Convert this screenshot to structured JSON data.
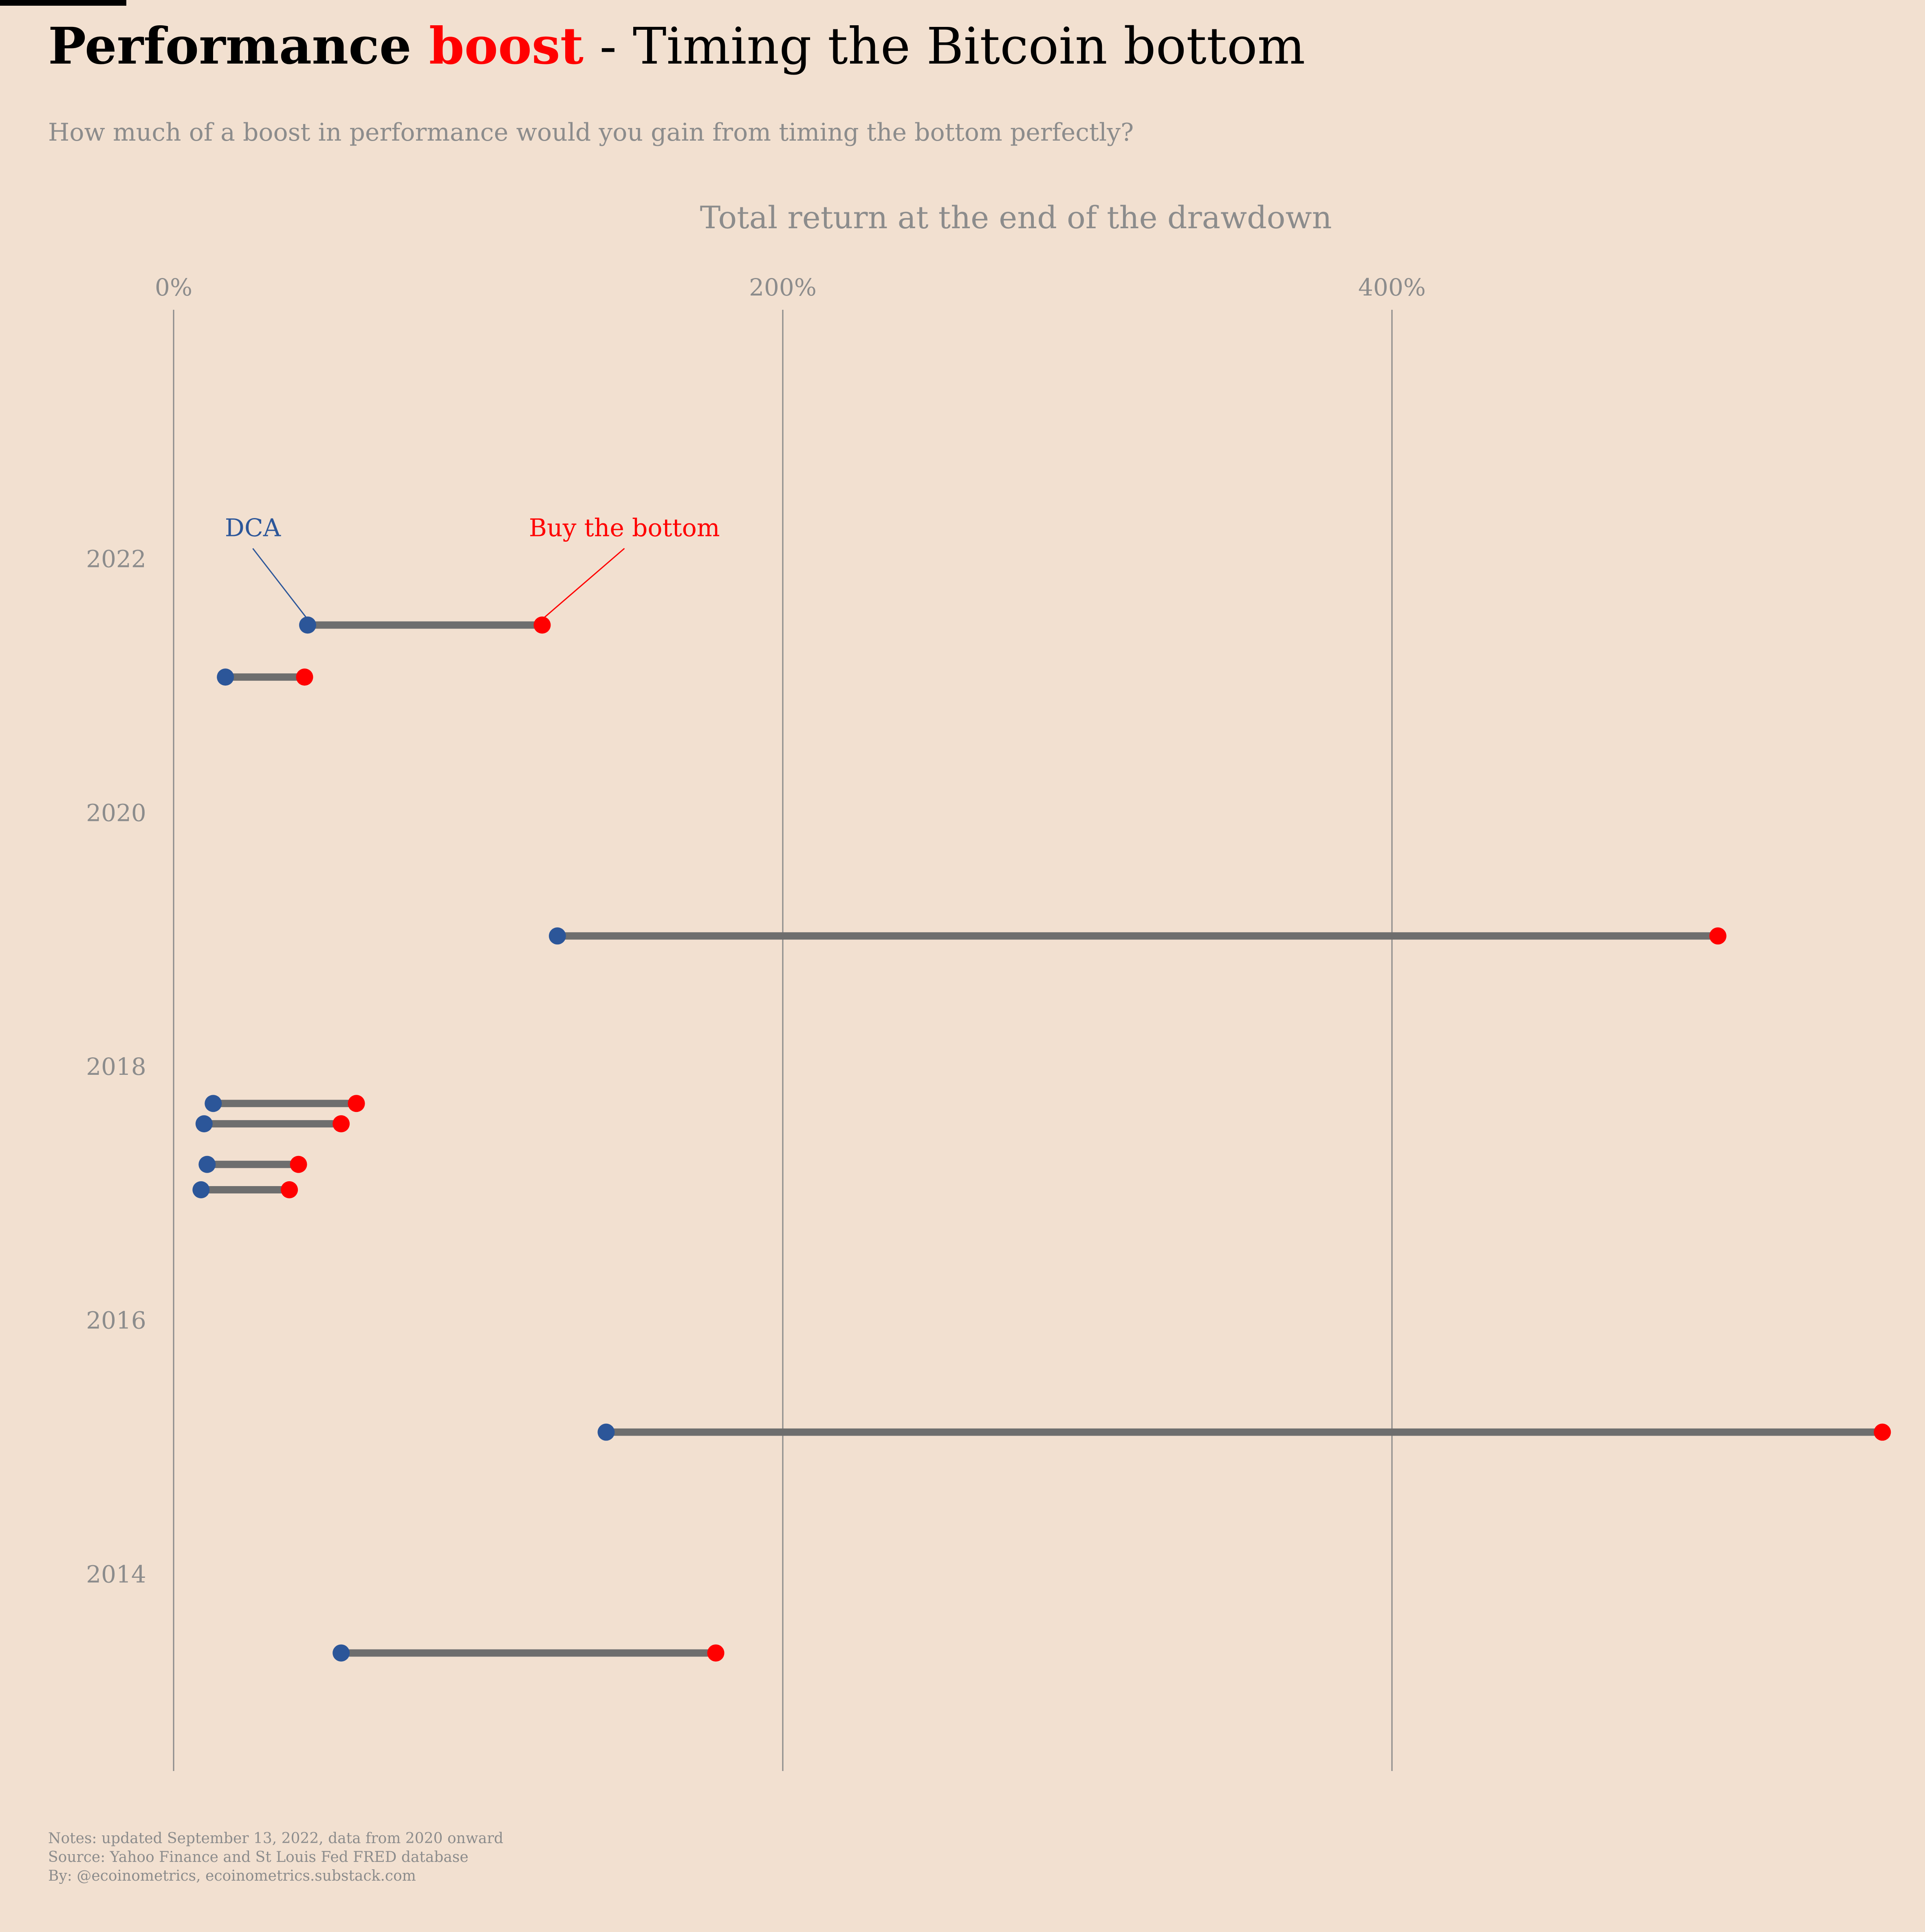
{
  "header": {
    "title_part1": "Performance ",
    "title_accent": "boost",
    "title_part2": " - Timing the Bitcoin bottom",
    "subtitle": "How much of a boost in performance would you gain from timing the bottom perfectly?"
  },
  "chart_data": {
    "type": "dumbbell",
    "title": "Performance boost - Timing the Bitcoin bottom",
    "subtitle": "How much of a boost in performance would you gain from timing the bottom perfectly?",
    "xlabel": "Total return at the end of the drawdown",
    "ylabel": "",
    "xlim": [
      -57,
      575
    ],
    "ylim": [
      2012.45,
      2023.9
    ],
    "x_ticks": [
      {
        "value": 0,
        "label": "0%"
      },
      {
        "value": 200,
        "label": "200%"
      },
      {
        "value": 400,
        "label": "400%"
      }
    ],
    "y_ticks": [
      {
        "value": 2014,
        "label": "2014"
      },
      {
        "value": 2016,
        "label": "2016"
      },
      {
        "value": 2018,
        "label": "2018"
      },
      {
        "value": 2020,
        "label": "2020"
      },
      {
        "value": 2022,
        "label": "2022"
      }
    ],
    "grid": "vertical",
    "colors": {
      "dca": "#2c5699",
      "bottom": "#ff0000",
      "connector": "#6e6e6e",
      "grid": "#8a8a8a"
    },
    "series": [
      {
        "name": "DCA",
        "color": "#2c5699"
      },
      {
        "name": "Buy the bottom",
        "color": "#ff0000"
      }
    ],
    "points": [
      {
        "y": 2021.48,
        "dca": 44,
        "bottom": 121
      },
      {
        "y": 2021.07,
        "dca": 17,
        "bottom": 43
      },
      {
        "y": 2019.03,
        "dca": 126,
        "bottom": 507
      },
      {
        "y": 2017.71,
        "dca": 13,
        "bottom": 60
      },
      {
        "y": 2017.55,
        "dca": 10,
        "bottom": 55
      },
      {
        "y": 2017.23,
        "dca": 11,
        "bottom": 41
      },
      {
        "y": 2017.03,
        "dca": 9,
        "bottom": 38
      },
      {
        "y": 2015.12,
        "dca": 142,
        "bottom": 561
      },
      {
        "y": 2013.38,
        "dca": 55,
        "bottom": 178
      }
    ],
    "annotations": [
      {
        "text": "DCA",
        "series": "dca",
        "x": 26,
        "y": 2022.18,
        "point_index": 0
      },
      {
        "text": "Buy the bottom",
        "series": "bottom",
        "x": 148,
        "y": 2022.18,
        "point_index": 0
      }
    ]
  },
  "notes": {
    "line1": "Notes: updated September 13, 2022, data from 2020 onward",
    "line2": "Source: Yahoo Finance and St Louis Fed FRED database",
    "line3": "By: @ecoinometrics, ecoinometrics.substack.com"
  }
}
